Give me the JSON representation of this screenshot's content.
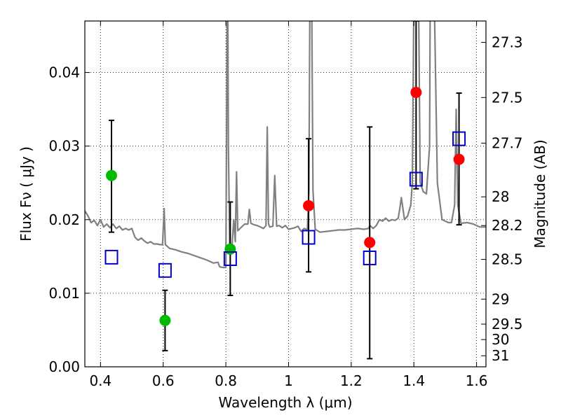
{
  "chart_data": {
    "type": "scatter",
    "xlabel": "Wavelength  λ (μm)",
    "ylabel": "Flux  Fν  ( μJy )",
    "y2label": "Magnitude (AB)",
    "xlim": [
      0.35,
      1.63
    ],
    "ylim": [
      0.0,
      0.047
    ],
    "grid": true,
    "x_ticks": [
      0.4,
      0.6,
      0.8,
      1.0,
      1.2,
      1.4,
      1.6
    ],
    "x_tick_labels": [
      "0.4",
      "0.6",
      "0.8",
      "1",
      "1.2",
      "1.4",
      "1.6"
    ],
    "y_ticks": [
      0.0,
      0.01,
      0.02,
      0.03,
      0.04
    ],
    "y_tick_labels": [
      "0.00",
      "0.01",
      "0.02",
      "0.03",
      "0.04"
    ],
    "y2_ticks": [
      {
        "label": "27.3",
        "flux": 0.0441
      },
      {
        "label": "27.5",
        "flux": 0.0366
      },
      {
        "label": "27.7",
        "flux": 0.0304
      },
      {
        "label": "28",
        "flux": 0.0231
      },
      {
        "label": "28.2",
        "flux": 0.0192
      },
      {
        "label": "28.5",
        "flux": 0.0146
      },
      {
        "label": "29",
        "flux": 0.0092
      },
      {
        "label": "29.5",
        "flux": 0.0058
      },
      {
        "label": "30",
        "flux": 0.0037
      },
      {
        "label": "31",
        "flux": 0.0015
      }
    ],
    "colors": {
      "green": "#00bb00",
      "red": "#ff0000",
      "model_squares": "#0000cc",
      "spectrum": "#808080",
      "errorbar": "#000000"
    },
    "series": [
      {
        "marker": "circle",
        "color": "#00bb00",
        "points": [
          {
            "x": 0.435,
            "y": 0.026,
            "err_low": 0.0183,
            "err_high": 0.0335
          },
          {
            "x": 0.606,
            "y": 0.0063,
            "err_low": 0.0022,
            "err_high": 0.0104
          },
          {
            "x": 0.814,
            "y": 0.016,
            "err_low": 0.0097,
            "err_high": 0.0224
          }
        ]
      },
      {
        "marker": "circle",
        "color": "#ff0000",
        "points": [
          {
            "x": 1.064,
            "y": 0.0219,
            "err_low": 0.0129,
            "err_high": 0.031
          },
          {
            "x": 1.259,
            "y": 0.0169,
            "err_low": 0.0011,
            "err_high": 0.0326
          },
          {
            "x": 1.407,
            "y": 0.0373,
            "err_low": 0.0242,
            "err_high": 0.047
          },
          {
            "x": 1.544,
            "y": 0.0282,
            "err_low": 0.0193,
            "err_high": 0.0372
          }
        ]
      },
      {
        "marker": "open-square",
        "color": "#0000cc",
        "points": [
          {
            "x": 0.435,
            "y": 0.0149
          },
          {
            "x": 0.606,
            "y": 0.0131
          },
          {
            "x": 0.814,
            "y": 0.0147
          },
          {
            "x": 1.064,
            "y": 0.0176
          },
          {
            "x": 1.259,
            "y": 0.0148
          },
          {
            "x": 1.407,
            "y": 0.0255
          },
          {
            "x": 1.544,
            "y": 0.031
          }
        ]
      }
    ],
    "spectrum": [
      [
        0.35,
        0.0212
      ],
      [
        0.36,
        0.0205
      ],
      [
        0.37,
        0.0196
      ],
      [
        0.38,
        0.0199
      ],
      [
        0.39,
        0.0192
      ],
      [
        0.4,
        0.02
      ],
      [
        0.41,
        0.019
      ],
      [
        0.42,
        0.0194
      ],
      [
        0.43,
        0.0189
      ],
      [
        0.44,
        0.0194
      ],
      [
        0.45,
        0.0188
      ],
      [
        0.46,
        0.0191
      ],
      [
        0.47,
        0.0186
      ],
      [
        0.48,
        0.0188
      ],
      [
        0.49,
        0.0186
      ],
      [
        0.5,
        0.0188
      ],
      [
        0.51,
        0.0176
      ],
      [
        0.52,
        0.0172
      ],
      [
        0.53,
        0.0175
      ],
      [
        0.54,
        0.0171
      ],
      [
        0.55,
        0.0168
      ],
      [
        0.56,
        0.017
      ],
      [
        0.57,
        0.0167
      ],
      [
        0.58,
        0.0167
      ],
      [
        0.59,
        0.0166
      ],
      [
        0.598,
        0.0166
      ],
      [
        0.603,
        0.0215
      ],
      [
        0.607,
        0.0166
      ],
      [
        0.62,
        0.0161
      ],
      [
        0.64,
        0.0159
      ],
      [
        0.66,
        0.0156
      ],
      [
        0.68,
        0.0154
      ],
      [
        0.7,
        0.0151
      ],
      [
        0.72,
        0.0148
      ],
      [
        0.74,
        0.0145
      ],
      [
        0.76,
        0.0141
      ],
      [
        0.775,
        0.0142
      ],
      [
        0.78,
        0.0136
      ],
      [
        0.79,
        0.0135
      ],
      [
        0.8,
        0.0135
      ],
      [
        0.802,
        0.03
      ],
      [
        0.804,
        0.05
      ],
      [
        0.806,
        0.05
      ],
      [
        0.808,
        0.03
      ],
      [
        0.812,
        0.0165
      ],
      [
        0.82,
        0.0166
      ],
      [
        0.825,
        0.02
      ],
      [
        0.83,
        0.017
      ],
      [
        0.834,
        0.0265
      ],
      [
        0.838,
        0.0185
      ],
      [
        0.85,
        0.019
      ],
      [
        0.86,
        0.0194
      ],
      [
        0.87,
        0.0194
      ],
      [
        0.875,
        0.0214
      ],
      [
        0.88,
        0.0195
      ],
      [
        0.89,
        0.0193
      ],
      [
        0.9,
        0.0192
      ],
      [
        0.91,
        0.019
      ],
      [
        0.92,
        0.0188
      ],
      [
        0.928,
        0.0192
      ],
      [
        0.932,
        0.0326
      ],
      [
        0.936,
        0.0194
      ],
      [
        0.94,
        0.019
      ],
      [
        0.95,
        0.0191
      ],
      [
        0.956,
        0.026
      ],
      [
        0.962,
        0.0191
      ],
      [
        0.97,
        0.0192
      ],
      [
        0.98,
        0.0189
      ],
      [
        0.99,
        0.0192
      ],
      [
        1.0,
        0.0187
      ],
      [
        1.01,
        0.0188
      ],
      [
        1.02,
        0.0189
      ],
      [
        1.03,
        0.0191
      ],
      [
        1.04,
        0.0184
      ],
      [
        1.05,
        0.0188
      ],
      [
        1.06,
        0.0186
      ],
      [
        1.065,
        0.024
      ],
      [
        1.068,
        0.05
      ],
      [
        1.074,
        0.05
      ],
      [
        1.078,
        0.024
      ],
      [
        1.085,
        0.0187
      ],
      [
        1.1,
        0.0183
      ],
      [
        1.12,
        0.0184
      ],
      [
        1.14,
        0.0185
      ],
      [
        1.16,
        0.0186
      ],
      [
        1.18,
        0.0186
      ],
      [
        1.2,
        0.0187
      ],
      [
        1.22,
        0.0188
      ],
      [
        1.24,
        0.0187
      ],
      [
        1.255,
        0.0188
      ],
      [
        1.26,
        0.0192
      ],
      [
        1.27,
        0.0188
      ],
      [
        1.28,
        0.0192
      ],
      [
        1.29,
        0.02
      ],
      [
        1.3,
        0.0198
      ],
      [
        1.31,
        0.0202
      ],
      [
        1.32,
        0.0198
      ],
      [
        1.33,
        0.02
      ],
      [
        1.34,
        0.0199
      ],
      [
        1.35,
        0.0202
      ],
      [
        1.355,
        0.0215
      ],
      [
        1.36,
        0.023
      ],
      [
        1.365,
        0.0215
      ],
      [
        1.37,
        0.02
      ],
      [
        1.38,
        0.0205
      ],
      [
        1.39,
        0.022
      ],
      [
        1.395,
        0.025
      ],
      [
        1.4,
        0.05
      ],
      [
        1.415,
        0.05
      ],
      [
        1.42,
        0.025
      ],
      [
        1.43,
        0.0238
      ],
      [
        1.44,
        0.0235
      ],
      [
        1.45,
        0.03
      ],
      [
        1.452,
        0.05
      ],
      [
        1.465,
        0.05
      ],
      [
        1.475,
        0.025
      ],
      [
        1.49,
        0.02
      ],
      [
        1.51,
        0.0196
      ],
      [
        1.52,
        0.0196
      ],
      [
        1.53,
        0.022
      ],
      [
        1.535,
        0.035
      ],
      [
        1.54,
        0.022
      ],
      [
        1.55,
        0.0195
      ],
      [
        1.57,
        0.0196
      ],
      [
        1.59,
        0.0194
      ],
      [
        1.61,
        0.019
      ],
      [
        1.63,
        0.019
      ]
    ]
  }
}
